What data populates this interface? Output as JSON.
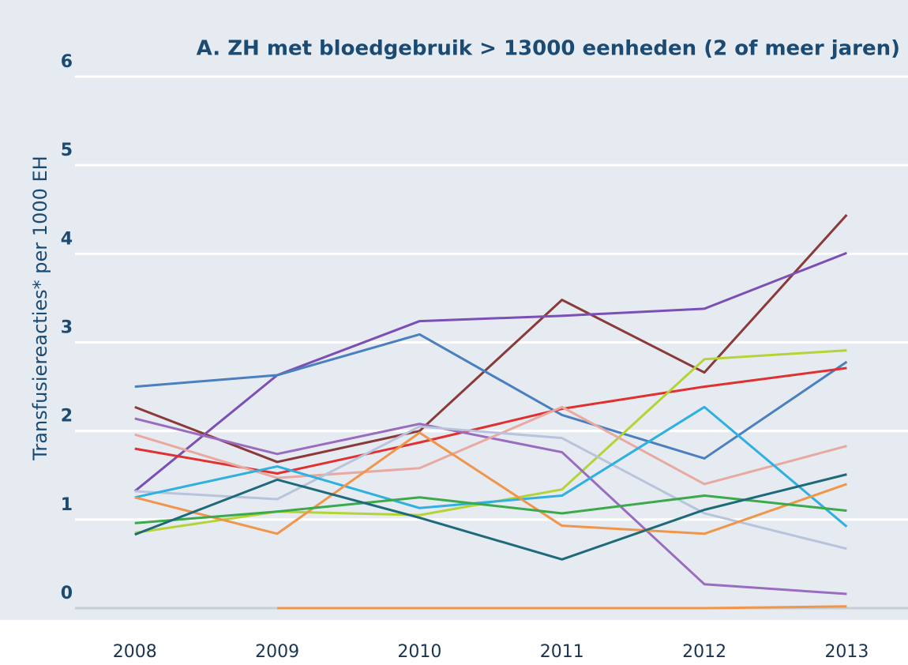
{
  "chart_data": {
    "type": "line",
    "title": "A. ZH met bloedgebruik > 13000 eenheden (2 of meer jaren)",
    "y_label": "Transfusiereacties* per 1000 EH",
    "x": [
      2008,
      2009,
      2010,
      2011,
      2012,
      2013
    ],
    "xlim": [
      2007.58,
      2013.43
    ],
    "xticks": [
      2008,
      2009,
      2010,
      2011,
      2012,
      2013
    ],
    "ylim": [
      0,
      6
    ],
    "yticks": [
      0,
      1,
      2,
      3,
      4,
      5,
      6
    ],
    "grid": true,
    "series": [
      {
        "color": "#8b3a3a",
        "values": [
          2.27,
          1.65,
          2.0,
          3.48,
          2.66,
          4.44
        ]
      },
      {
        "color": "#7b4fb5",
        "values": [
          1.32,
          2.63,
          3.24,
          3.3,
          3.38,
          4.01
        ]
      },
      {
        "color": "#4a7fc0",
        "values": [
          2.5,
          2.63,
          3.09,
          2.18,
          1.69,
          2.78
        ]
      },
      {
        "color": "#e03030",
        "values": [
          1.8,
          1.52,
          1.87,
          2.25,
          2.5,
          2.71
        ]
      },
      {
        "color": "#b5d334",
        "values": [
          0.85,
          1.09,
          1.05,
          1.34,
          2.81,
          2.91
        ]
      },
      {
        "color": "#9a6cc0",
        "values": [
          2.14,
          1.74,
          2.08,
          1.76,
          0.27,
          0.16
        ]
      },
      {
        "color": "#e8a9a0",
        "values": [
          1.96,
          1.47,
          1.58,
          2.27,
          1.4,
          1.83
        ]
      },
      {
        "color": "#b8c4dc",
        "values": [
          1.32,
          1.23,
          2.05,
          1.92,
          1.07,
          0.67
        ]
      },
      {
        "color": "#2fb0e0",
        "values": [
          1.25,
          1.6,
          1.13,
          1.27,
          2.27,
          0.92
        ]
      },
      {
        "color": "#f0964a",
        "values": [
          1.25,
          0.84,
          1.98,
          0.93,
          0.84,
          1.4
        ]
      },
      {
        "color": "#3aaa4a",
        "values": [
          0.96,
          1.09,
          1.25,
          1.07,
          1.27,
          1.1
        ]
      },
      {
        "color": "#1e6a7a",
        "values": [
          0.83,
          1.45,
          1.02,
          0.55,
          1.11,
          1.51
        ]
      },
      {
        "color": "#f0964a",
        "values": [
          null,
          0,
          0,
          0,
          0,
          0.02
        ]
      }
    ]
  }
}
